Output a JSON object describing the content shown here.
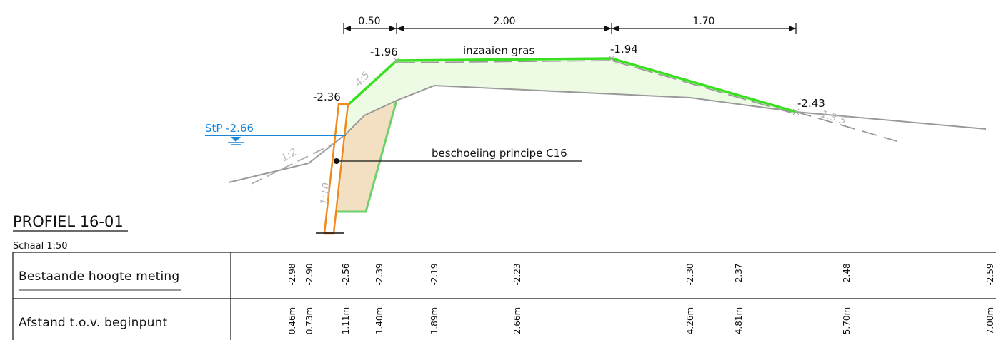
{
  "drawing": {
    "title": "PROFIEL 16-01",
    "scale": "Schaal 1:50",
    "dimensions": [
      "0.50",
      "2.00",
      "1.70"
    ],
    "levels": {
      "left_top": "-1.96",
      "right_top": "-1.94",
      "left_low": "-2.36",
      "right_low": "-2.43"
    },
    "water_level": "StP -2.66",
    "annotations": {
      "grass": "inzaaien gras",
      "revetment": "beschoeiing principe C16"
    },
    "slopes": {
      "bank": "4:5",
      "right": "1:3.5",
      "bed": "1:2",
      "pile": "1:10"
    }
  },
  "table": {
    "rows": [
      {
        "label": "Bestaande hoogte meting",
        "values": [
          "-2.98",
          "-2.90",
          "-2.56",
          "-2.39",
          "-2.19",
          "-2.23",
          "-2.30",
          "-2.37",
          "-2.48",
          "-2.59"
        ]
      },
      {
        "label": "Afstand t.o.v. beginpunt",
        "values": [
          "0.46m",
          "0.73m",
          "1.11m",
          "1.40m",
          "1.89m",
          "2.66m",
          "4.26m",
          "4.81m",
          "5.70m",
          "7.00m"
        ]
      }
    ]
  },
  "colors": {
    "green": "#39e01f",
    "green_fill": "#eefbe4",
    "orange": "#f08a1c",
    "orange_fill": "#f3dfc2",
    "water": "#1a86d8",
    "existing_ground": "#999999"
  }
}
